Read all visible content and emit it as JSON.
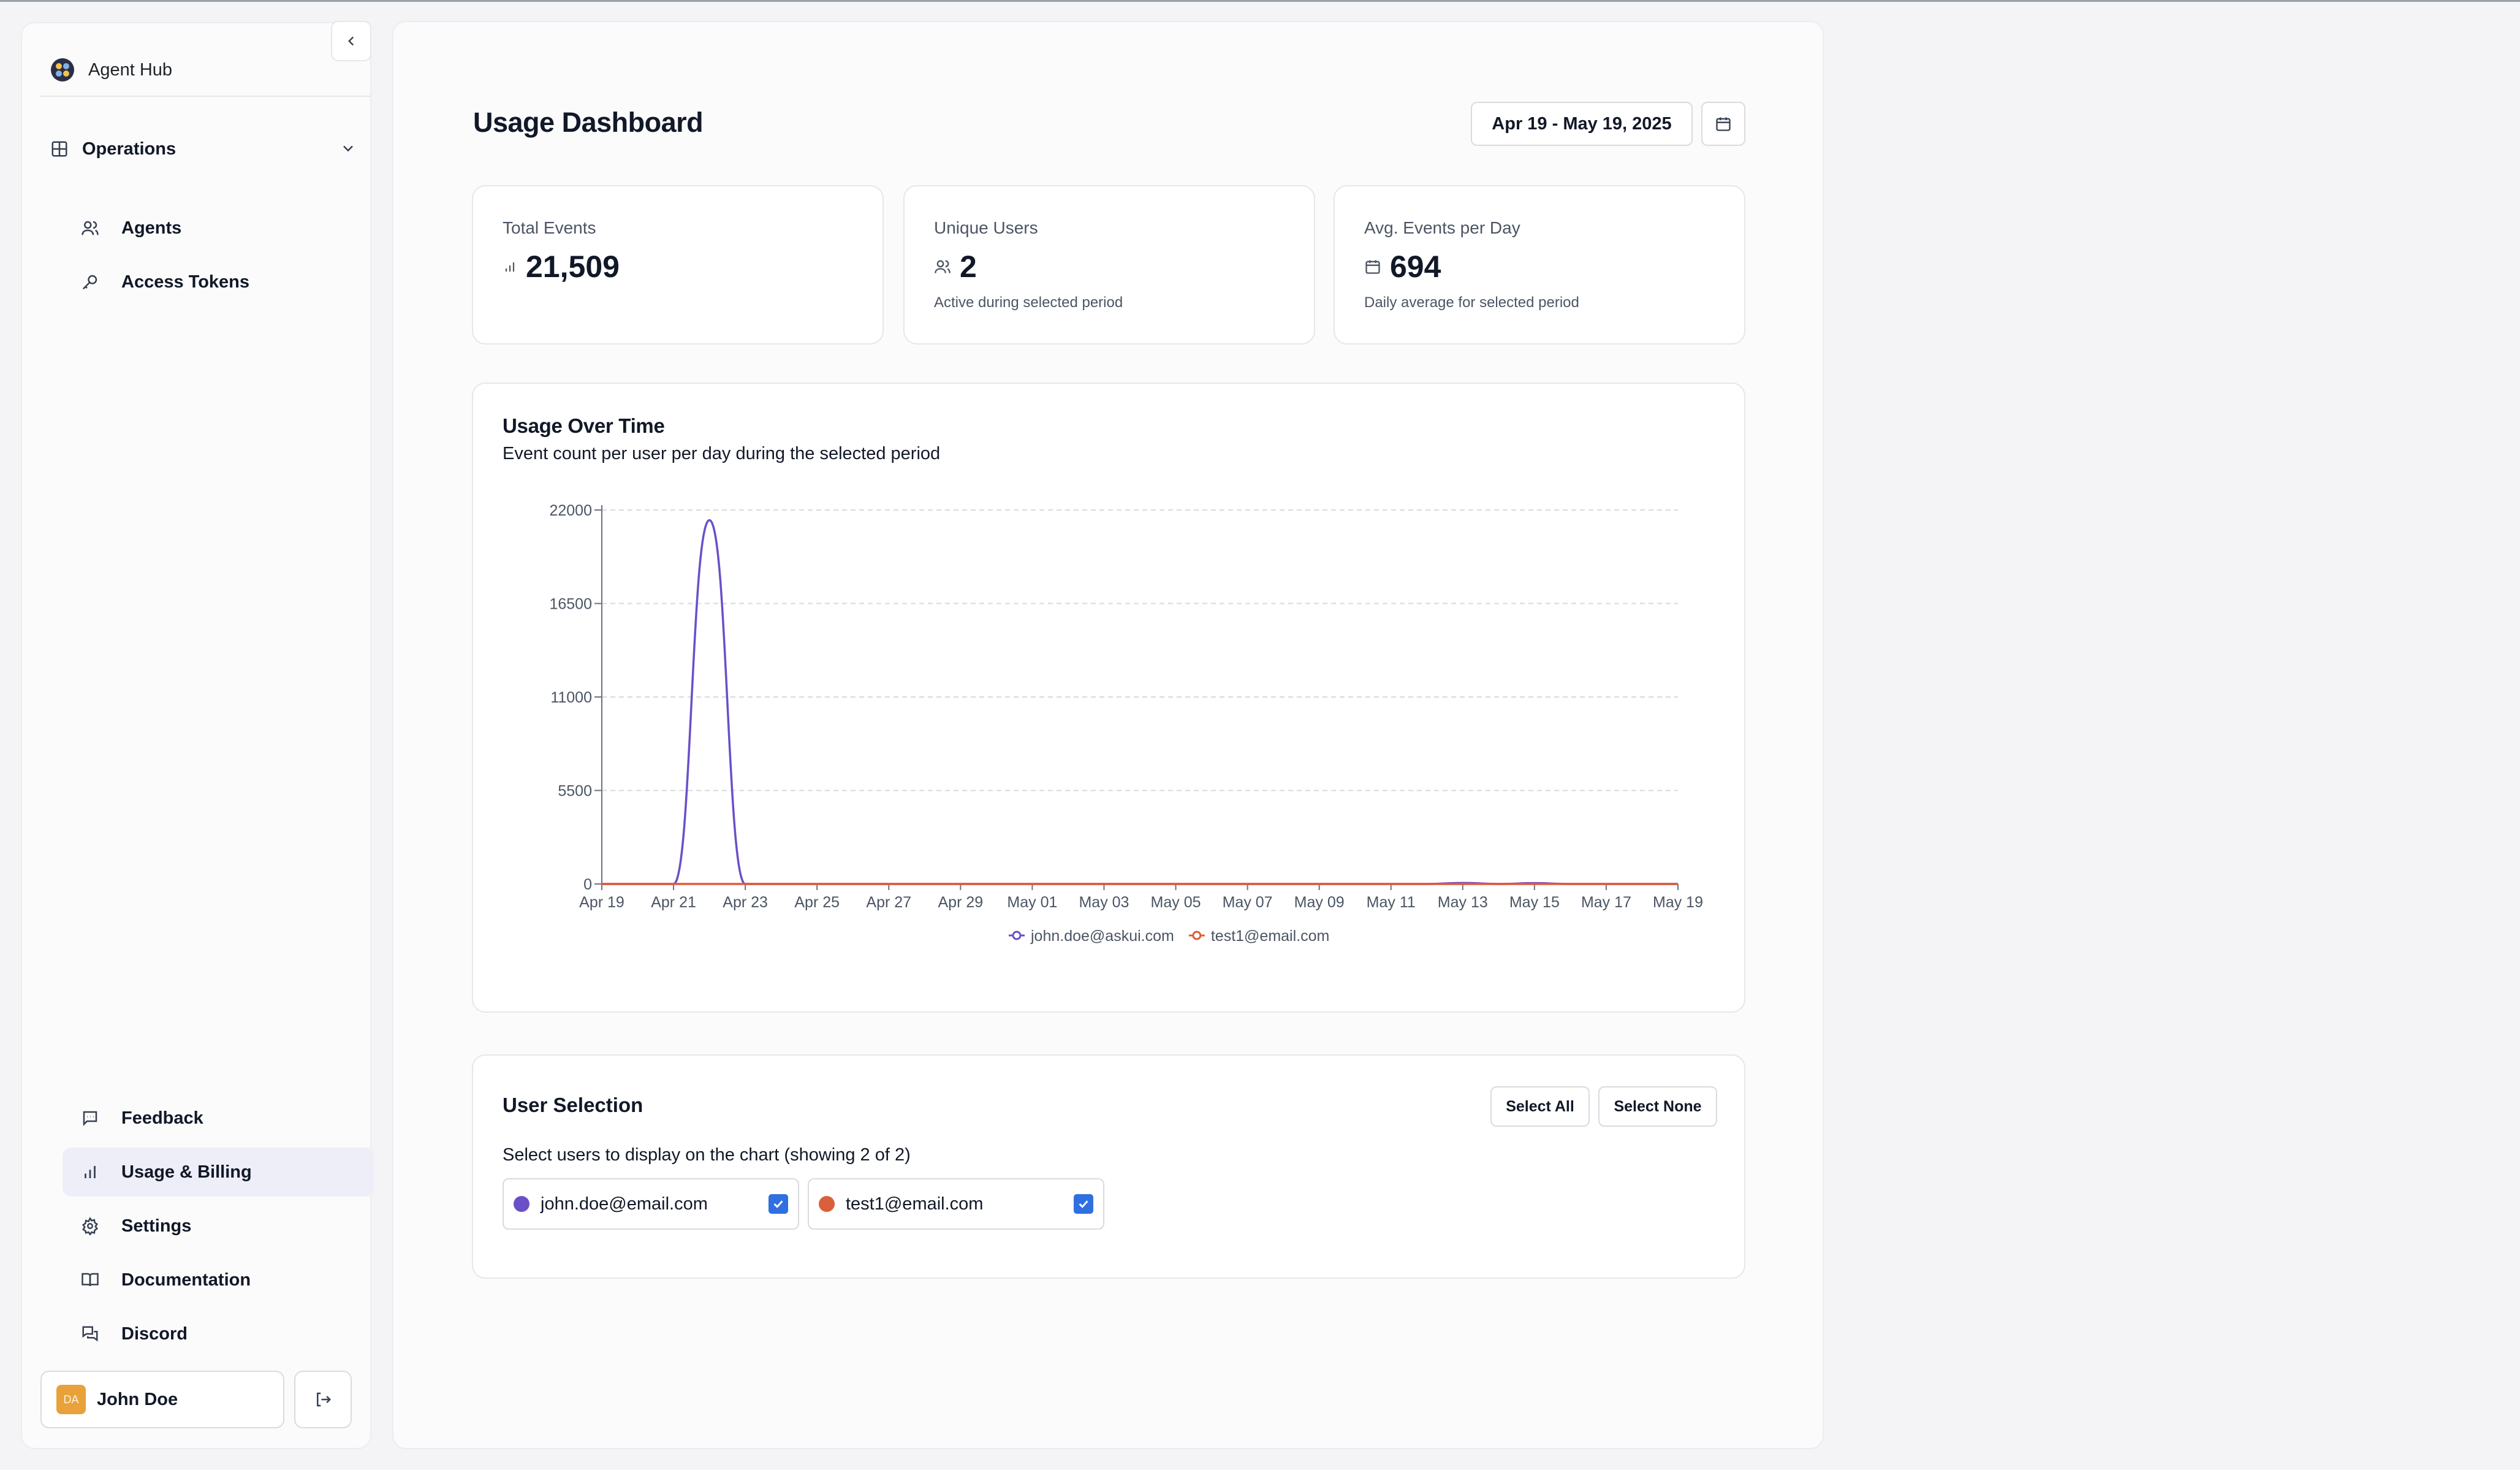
{
  "app": {
    "name": "Agent Hub"
  },
  "sidebar": {
    "workspace": "Operations",
    "top_items": [
      {
        "label": "Agents",
        "icon": "users-icon"
      },
      {
        "label": "Access Tokens",
        "icon": "key-icon"
      }
    ],
    "bottom_items": [
      {
        "label": "Feedback",
        "icon": "message-icon"
      },
      {
        "label": "Usage & Billing",
        "icon": "bar-chart-icon",
        "active": true
      },
      {
        "label": "Settings",
        "icon": "gear-icon"
      },
      {
        "label": "Documentation",
        "icon": "book-icon"
      },
      {
        "label": "Discord",
        "icon": "chat-icon"
      }
    ],
    "user": {
      "name": "John Doe",
      "initials": "DA"
    }
  },
  "header": {
    "title": "Usage Dashboard",
    "date_range": "Apr 19 - May 19, 2025"
  },
  "stats": {
    "total_events": {
      "title": "Total Events",
      "value": "21,509"
    },
    "unique_users": {
      "title": "Unique Users",
      "value": "2",
      "note": "Active during selected period"
    },
    "avg_events": {
      "title": "Avg. Events per Day",
      "value": "694",
      "note": "Daily average for selected period"
    }
  },
  "chart": {
    "title": "Usage Over Time",
    "subtitle": "Event count per user per day during the selected period"
  },
  "chart_data": {
    "type": "line",
    "x": [
      "Apr 19",
      "Apr 20",
      "Apr 21",
      "Apr 22",
      "Apr 23",
      "Apr 24",
      "Apr 25",
      "Apr 26",
      "Apr 27",
      "Apr 28",
      "Apr 29",
      "Apr 30",
      "May 01",
      "May 02",
      "May 03",
      "May 04",
      "May 05",
      "May 06",
      "May 07",
      "May 08",
      "May 09",
      "May 10",
      "May 11",
      "May 12",
      "May 13",
      "May 14",
      "May 15",
      "May 16",
      "May 17",
      "May 18",
      "May 19"
    ],
    "x_tick_labels": [
      "Apr 19",
      "Apr 21",
      "Apr 23",
      "Apr 25",
      "Apr 27",
      "Apr 29",
      "May 01",
      "May 03",
      "May 05",
      "May 07",
      "May 09",
      "May 11",
      "May 13",
      "May 15",
      "May 17",
      "May 19"
    ],
    "y_ticks": [
      0,
      5500,
      11000,
      16500,
      22000
    ],
    "ylim": [
      0,
      22000
    ],
    "grid": true,
    "legend": "bottom-center",
    "series": [
      {
        "name": "john.doe@askui.com",
        "color": "#6a4fc8",
        "values": [
          0,
          0,
          0,
          21400,
          0,
          0,
          0,
          0,
          0,
          0,
          0,
          0,
          0,
          0,
          0,
          0,
          0,
          0,
          0,
          0,
          0,
          0,
          0,
          0,
          60,
          0,
          49,
          0,
          0,
          0,
          0
        ]
      },
      {
        "name": "test1@email.com",
        "color": "#e05a3a",
        "values": [
          0,
          0,
          0,
          0,
          0,
          0,
          0,
          0,
          0,
          0,
          0,
          0,
          0,
          0,
          0,
          0,
          0,
          0,
          0,
          0,
          0,
          0,
          0,
          0,
          0,
          0,
          0,
          0,
          0,
          0,
          0
        ]
      }
    ]
  },
  "user_selection": {
    "title": "User Selection",
    "select_all": "Select All",
    "select_none": "Select None",
    "description": "Select users to display on the chart (showing 2 of 2)",
    "users": [
      {
        "email": "john.doe@email.com",
        "color": "#6a4fc8",
        "checked": true
      },
      {
        "email": "test1@email.com",
        "color": "#d9603b",
        "checked": true
      }
    ]
  }
}
